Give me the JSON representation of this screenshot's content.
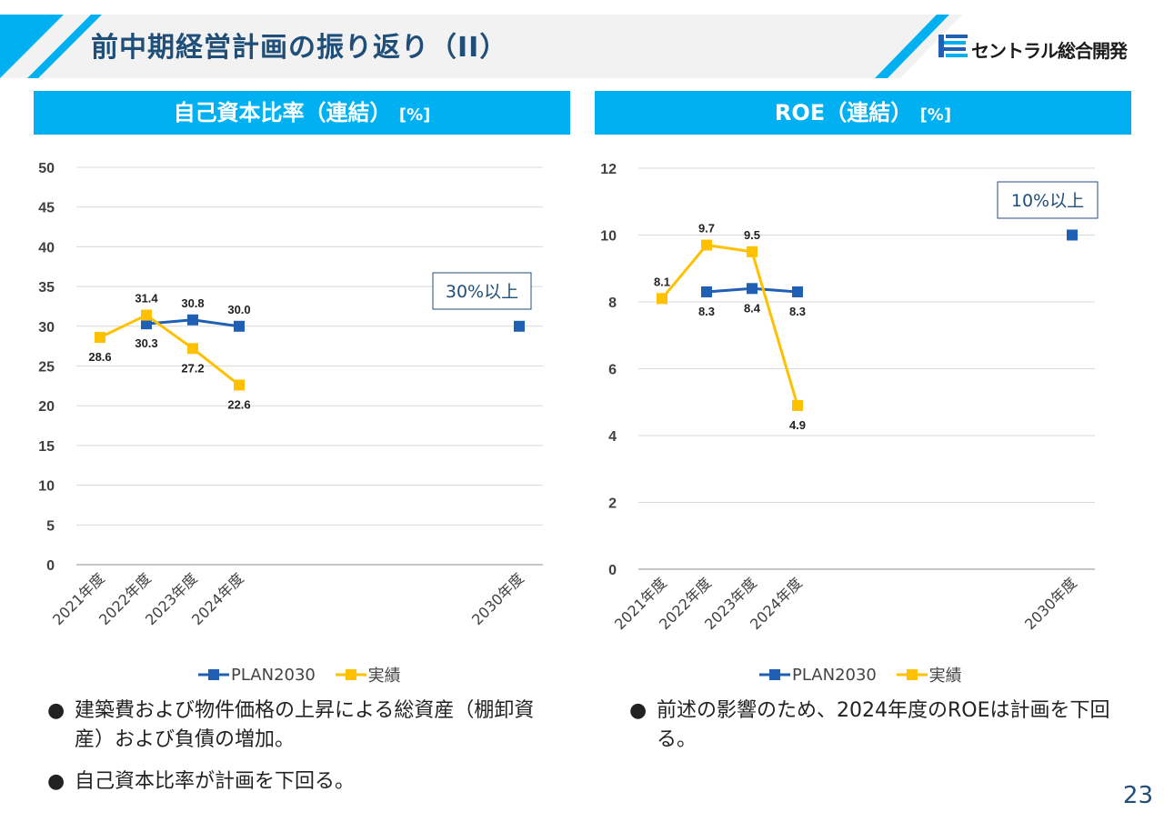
{
  "header": {
    "title": "前中期経営計画の振り返り（II）",
    "logo_text": "セントラル総合開発",
    "accent_color": "#00b0f0"
  },
  "panels": [
    {
      "heading": "自己資本比率（連結）",
      "unit": "[%]",
      "target_label": "30%以上",
      "bullets": [
        "建築費および物件価格の上昇による総資産（棚卸資産）および負債の増加。",
        "自己資本比率が計画を下回る。"
      ]
    },
    {
      "heading": "ROE（連結）",
      "unit": "[%]",
      "target_label": "10%以上",
      "bullets": [
        "前述の影響のため、2024年度のROEは計画を下回る。"
      ]
    }
  ],
  "legend": {
    "plan": "PLAN2030",
    "actual": "実績"
  },
  "page_number": "23",
  "chart_data": [
    {
      "type": "line",
      "title": "自己資本比率（連結）[%]",
      "categories": [
        "2021年度",
        "2022年度",
        "2023年度",
        "2024年度",
        "",
        "",
        "",
        "2030年度"
      ],
      "ylim": [
        0,
        50
      ],
      "yticks": [
        0,
        5,
        10,
        15,
        20,
        25,
        30,
        35,
        40,
        45,
        50
      ],
      "grid": true,
      "legend_position": "bottom",
      "series": [
        {
          "name": "PLAN2030",
          "color": "#1f5fb4",
          "values": [
            null,
            30.3,
            30.8,
            30.0,
            null,
            null,
            null,
            30.0
          ],
          "labels": [
            null,
            "30.3",
            "30.8",
            "30.0",
            null,
            null,
            null,
            null
          ],
          "label_pos": [
            "",
            "below",
            "above",
            "above",
            "",
            "",
            "",
            ""
          ]
        },
        {
          "name": "実績",
          "color": "#ffc000",
          "values": [
            28.6,
            31.4,
            27.2,
            22.6,
            null,
            null,
            null,
            null
          ],
          "labels": [
            "28.6",
            "31.4",
            "27.2",
            "22.6",
            null,
            null,
            null,
            null
          ],
          "label_pos": [
            "below",
            "above",
            "below",
            "below",
            "",
            "",
            "",
            ""
          ]
        }
      ]
    },
    {
      "type": "line",
      "title": "ROE（連結）[%]",
      "categories": [
        "2021年度",
        "2022年度",
        "2023年度",
        "2024年度",
        "",
        "",
        "",
        "2030年度"
      ],
      "ylim": [
        0,
        12
      ],
      "yticks": [
        0,
        2,
        4,
        6,
        8,
        10,
        12
      ],
      "grid": true,
      "legend_position": "bottom",
      "series": [
        {
          "name": "PLAN2030",
          "color": "#1f5fb4",
          "values": [
            null,
            8.3,
            8.4,
            8.3,
            null,
            null,
            null,
            10.0
          ],
          "labels": [
            null,
            "8.3",
            "8.4",
            "8.3",
            null,
            null,
            null,
            null
          ],
          "label_pos": [
            "",
            "below",
            "below",
            "below",
            "",
            "",
            "",
            ""
          ]
        },
        {
          "name": "実績",
          "color": "#ffc000",
          "values": [
            8.1,
            9.7,
            9.5,
            4.9,
            null,
            null,
            null,
            null
          ],
          "labels": [
            "8.1",
            "9.7",
            "9.5",
            "4.9",
            null,
            null,
            null,
            null
          ],
          "label_pos": [
            "above",
            "above",
            "above",
            "below",
            "",
            "",
            "",
            ""
          ]
        }
      ]
    }
  ]
}
